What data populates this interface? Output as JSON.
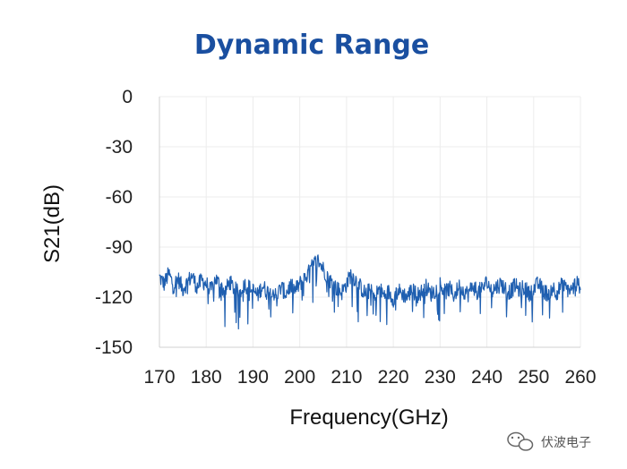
{
  "chart_data": {
    "type": "line",
    "title": "Dynamic Range",
    "xlabel": "Frequency(GHz)",
    "ylabel": "S21(dB)",
    "xlim": [
      170,
      260
    ],
    "ylim": [
      -150,
      0
    ],
    "x_ticks": [
      170,
      180,
      190,
      200,
      210,
      220,
      230,
      240,
      250,
      260
    ],
    "y_ticks": [
      0,
      -30,
      -60,
      -90,
      -120,
      -150
    ],
    "grid": true,
    "legend": "none",
    "series": [
      {
        "color": "#1f5fb0",
        "x": [
          170,
          171,
          172,
          173,
          174,
          175,
          176,
          177,
          178,
          179,
          180,
          181,
          182,
          183,
          184,
          185,
          186,
          187,
          188,
          189,
          190,
          191,
          192,
          193,
          194,
          195,
          196,
          197,
          198,
          199,
          200,
          201,
          202,
          203,
          204,
          205,
          206,
          207,
          208,
          209,
          210,
          211,
          212,
          213,
          214,
          215,
          216,
          217,
          218,
          219,
          220,
          221,
          222,
          223,
          224,
          225,
          226,
          227,
          228,
          229,
          230,
          231,
          232,
          233,
          234,
          235,
          236,
          237,
          238,
          239,
          240,
          241,
          242,
          243,
          244,
          245,
          246,
          247,
          248,
          249,
          250,
          251,
          252,
          253,
          254,
          255,
          256,
          257,
          258,
          259,
          260
        ],
        "y": [
          -108,
          -112,
          -106,
          -113,
          -109,
          -115,
          -111,
          -107,
          -114,
          -110,
          -112,
          -116,
          -109,
          -113,
          -117,
          -111,
          -115,
          -118,
          -112,
          -114,
          -116,
          -119,
          -113,
          -117,
          -115,
          -120,
          -114,
          -118,
          -113,
          -116,
          -112,
          -109,
          -105,
          -100,
          -98,
          -103,
          -108,
          -112,
          -115,
          -117,
          -112,
          -106,
          -110,
          -114,
          -118,
          -116,
          -120,
          -115,
          -119,
          -117,
          -121,
          -116,
          -118,
          -120,
          -115,
          -119,
          -117,
          -114,
          -118,
          -116,
          -112,
          -117,
          -115,
          -119,
          -114,
          -116,
          -118,
          -113,
          -117,
          -115,
          -111,
          -116,
          -114,
          -112,
          -115,
          -117,
          -113,
          -116,
          -114,
          -118,
          -115,
          -112,
          -116,
          -118,
          -114,
          -117,
          -113,
          -115,
          -116,
          -112,
          -113
        ],
        "noise_amplitude": 10
      }
    ]
  },
  "watermark": {
    "text": "伏波电子",
    "icon": "wechat-icon"
  }
}
